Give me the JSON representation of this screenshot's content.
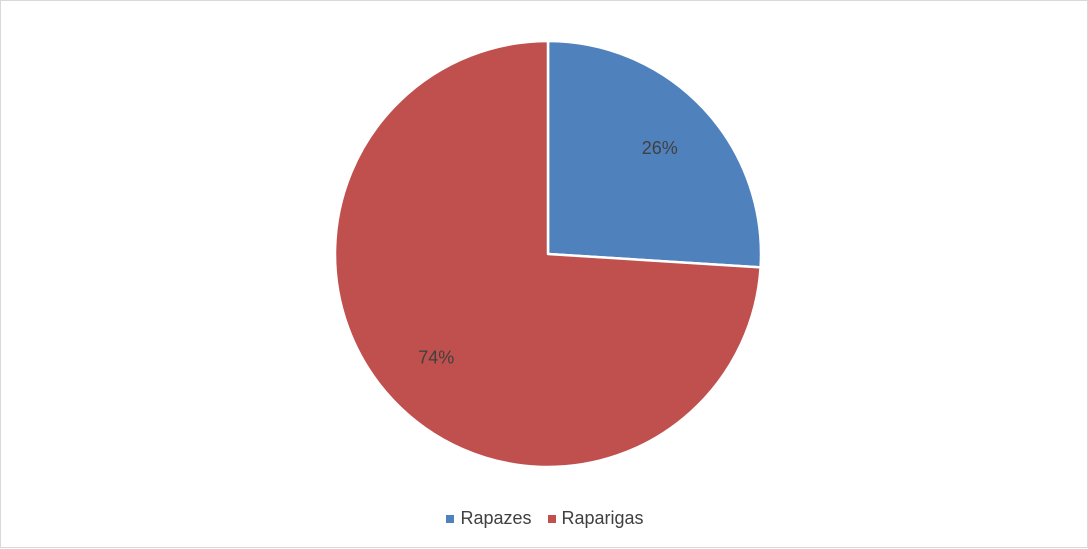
{
  "chart_data": {
    "type": "pie",
    "title": "",
    "legend_position": "bottom",
    "slices": [
      {
        "name": "Rapazes",
        "value": 26,
        "label": "26%",
        "color": "#4F81BD"
      },
      {
        "name": "Raparigas",
        "value": 74,
        "label": "74%",
        "color": "#C0504D"
      }
    ]
  },
  "legend": {
    "items": [
      {
        "label": "Rapazes",
        "color": "#4F81BD"
      },
      {
        "label": "Raparigas",
        "color": "#C0504D"
      }
    ]
  }
}
